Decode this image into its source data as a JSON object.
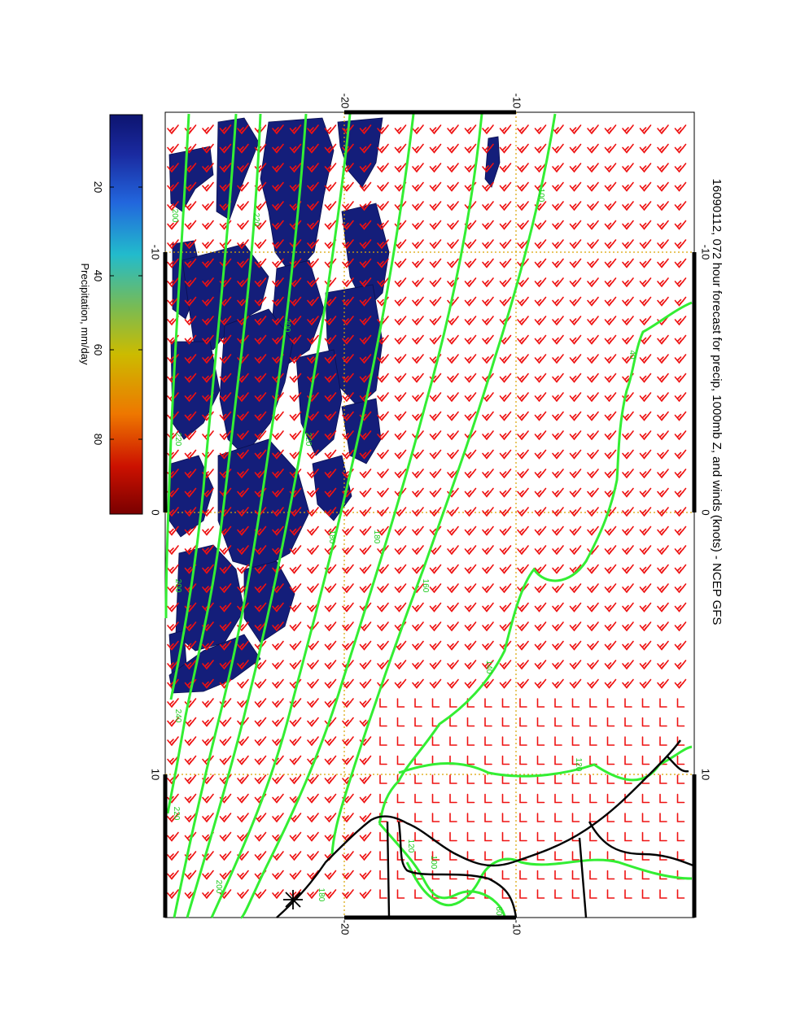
{
  "title": "16090112, 072 hour forecast for precip, 1000mb Z, and winds (knots) - NCEP GFS",
  "colorbar": {
    "label": "Precipitation, mm/day",
    "ticks": [
      "20",
      "40",
      "60",
      "80"
    ],
    "colors": [
      "#7a0000",
      "#cc1100",
      "#ee7700",
      "#ccbb00",
      "#77bb55",
      "#22bbcc",
      "#2266dd",
      "#1a2aa0",
      "#0d1470"
    ]
  },
  "axes": {
    "top_lat_labels": [
      "-20",
      "-10"
    ],
    "bottom_lat_labels": [
      "-20",
      "-10"
    ],
    "left_lon_labels": [
      "-10",
      "0",
      "10"
    ],
    "right_lon_labels": [
      "-10",
      "0",
      "10"
    ]
  },
  "contour_labels": [
    "200",
    "220",
    "200",
    "180",
    "180",
    "160",
    "140",
    "120",
    "100",
    "220",
    "240",
    "220",
    "200",
    "220",
    "200",
    "180",
    "40",
    "80",
    "100",
    "120"
  ],
  "colors": {
    "precip": "#141e7a",
    "contour": "#33ee33",
    "wind_barb": "#ee1111",
    "coast": "#000000",
    "grid": "#d9a400"
  },
  "icon_names": [
    "station-marker-icon"
  ]
}
